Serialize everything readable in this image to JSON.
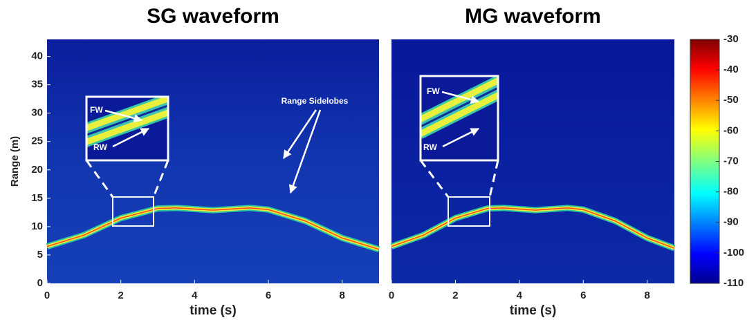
{
  "chart_data": [
    {
      "type": "heatmap",
      "title": "SG waveform",
      "xlabel": "time (s)",
      "ylabel": "Range (m)",
      "xlim": [
        0,
        9
      ],
      "xticks": [
        0,
        2,
        4,
        6,
        8
      ],
      "ylim": [
        0,
        43
      ],
      "yticks": [
        0,
        5,
        10,
        15,
        20,
        25,
        30,
        35,
        40
      ],
      "x": [
        0,
        1,
        2,
        3,
        3.5,
        4,
        4.5,
        5,
        5.5,
        6,
        7,
        8,
        9
      ],
      "values": [
        6.5,
        8.5,
        11.5,
        13.2,
        13.3,
        13.1,
        12.9,
        13.1,
        13.3,
        13.0,
        11.0,
        8.0,
        6.0
      ],
      "annotations": [
        "FW",
        "RW",
        "Range Sidelobes"
      ]
    },
    {
      "type": "heatmap",
      "title": "MG waveform",
      "xlabel": "time (s)",
      "xlim": [
        0,
        8.85
      ],
      "xticks": [
        0,
        2,
        4,
        6,
        8
      ],
      "ylim": [
        0,
        43
      ],
      "x": [
        0,
        1,
        2,
        3,
        3.5,
        4,
        4.5,
        5,
        5.5,
        6,
        7,
        8,
        8.85
      ],
      "values": [
        6.5,
        8.5,
        11.5,
        13.2,
        13.3,
        13.1,
        12.9,
        13.1,
        13.3,
        13.0,
        11.0,
        8.0,
        6.2
      ],
      "annotations": [
        "FW",
        "RW"
      ],
      "colorbar": {
        "clim": [
          -110,
          -30
        ],
        "ticks": [
          -30,
          -40,
          -50,
          -60,
          -70,
          -80,
          -90,
          -100,
          -110
        ]
      }
    }
  ]
}
